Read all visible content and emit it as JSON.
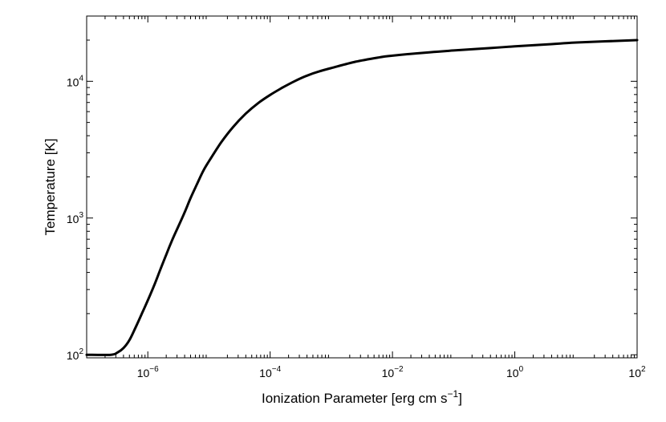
{
  "chart_data": {
    "type": "line",
    "title": "",
    "xlabel": "Ionization Parameter [erg cm s",
    "xlabel_superscript": "−1",
    "xlabel_suffix": "]",
    "ylabel": "Temperature [K]",
    "xscale": "log",
    "yscale": "log",
    "xlim": [
      1e-07,
      100
    ],
    "ylim": [
      95,
      30000
    ],
    "grid": false,
    "legend": "none",
    "x_ticks": [
      {
        "base": "10",
        "exp": "−6",
        "value": 1e-06
      },
      {
        "base": "10",
        "exp": "−4",
        "value": 0.0001
      },
      {
        "base": "10",
        "exp": "−2",
        "value": 0.01
      },
      {
        "base": "10",
        "exp": "0",
        "value": 1
      },
      {
        "base": "10",
        "exp": "2",
        "value": 100
      }
    ],
    "y_ticks": [
      {
        "base": "10",
        "exp": "2",
        "value": 100
      },
      {
        "base": "10",
        "exp": "3",
        "value": 1000
      },
      {
        "base": "10",
        "exp": "4",
        "value": 10000
      }
    ],
    "series": [
      {
        "color": "#000000",
        "x": [
          1e-07,
          2.5e-07,
          3.2e-07,
          4e-07,
          5e-07,
          6.3e-07,
          8e-07,
          1e-06,
          1.3e-06,
          1.6e-06,
          2e-06,
          2.5e-06,
          3.2e-06,
          4e-06,
          5e-06,
          6.3e-06,
          8e-06,
          1e-05,
          1.6e-05,
          2.5e-05,
          4e-05,
          6.3e-05,
          0.0001,
          0.00016,
          0.00025,
          0.0004,
          0.00063,
          0.001,
          0.0025,
          0.0063,
          0.01,
          0.04,
          0.1,
          0.4,
          1,
          4,
          10,
          100
        ],
        "y": [
          100,
          100,
          104,
          112,
          128,
          158,
          200,
          250,
          330,
          420,
          540,
          690,
          880,
          1100,
          1400,
          1750,
          2200,
          2600,
          3600,
          4650,
          5800,
          6900,
          7950,
          9000,
          10000,
          11000,
          11800,
          12500,
          13900,
          15000,
          15400,
          16300,
          16800,
          17500,
          18000,
          18700,
          19200,
          20000
        ]
      }
    ]
  }
}
